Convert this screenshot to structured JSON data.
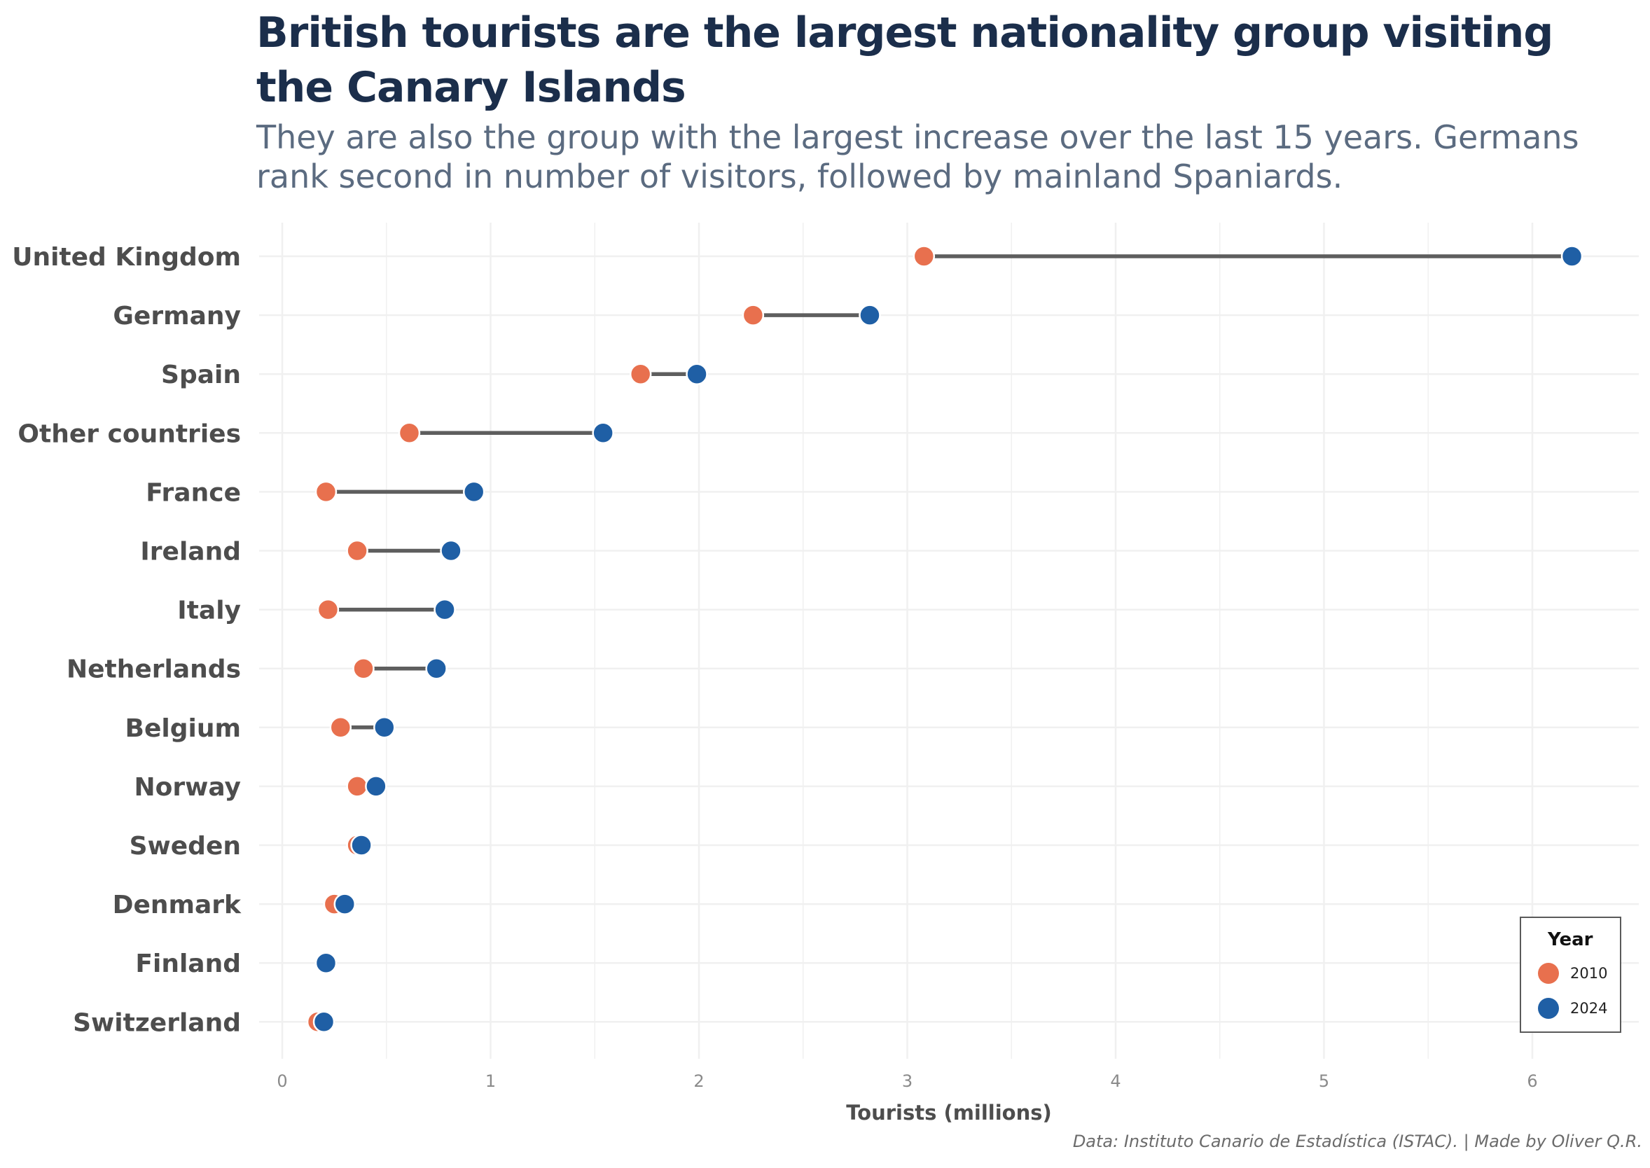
{
  "header": {
    "title": "British tourists are the largest nationality group visiting the Canary Islands",
    "subtitle": "They are also the group with the largest increase over the last 15 years. Germans rank second in number of visitors, followed by mainland Spaniards."
  },
  "caption": "Data: Instituto Canario de Estadística (ISTAC). | Made by Oliver Q.R.",
  "colors": {
    "year_2010": "#e8704e",
    "year_2024": "#1f5fa5",
    "segment": "#5e5e5e",
    "grid": "#f0f0f0"
  },
  "legend": {
    "title": "Year",
    "items": [
      {
        "label": "2010",
        "color": "#e8704e"
      },
      {
        "label": "2024",
        "color": "#1f5fa5"
      }
    ]
  },
  "chart_data": {
    "type": "dumbbell",
    "title": "British tourists are the largest nationality group visiting the Canary Islands",
    "xlabel": "Tourists (millions)",
    "ylabel": "",
    "xlim": [
      0,
      6.3
    ],
    "xticks": [
      0,
      1,
      2,
      3,
      4,
      5,
      6
    ],
    "grid": true,
    "legend_position": "bottom-right",
    "categories": [
      "United Kingdom",
      "Germany",
      "Spain",
      "Other countries",
      "France",
      "Ireland",
      "Italy",
      "Netherlands",
      "Belgium",
      "Norway",
      "Sweden",
      "Denmark",
      "Finland",
      "Switzerland"
    ],
    "series": [
      {
        "name": "2010",
        "values": [
          3.08,
          2.26,
          1.72,
          0.61,
          0.21,
          0.36,
          0.22,
          0.39,
          0.28,
          0.36,
          0.36,
          0.25,
          0.21,
          0.17
        ]
      },
      {
        "name": "2024",
        "values": [
          6.19,
          2.82,
          1.99,
          1.54,
          0.92,
          0.81,
          0.78,
          0.74,
          0.49,
          0.45,
          0.38,
          0.3,
          0.21,
          0.2
        ]
      }
    ]
  }
}
